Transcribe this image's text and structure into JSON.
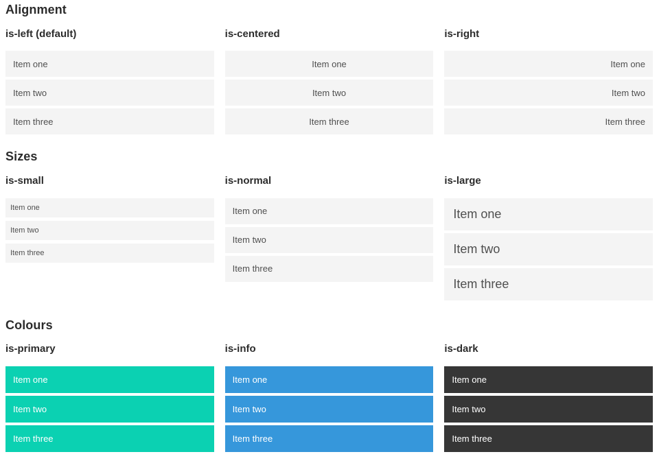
{
  "colors": {
    "page_bg": "#ffffff",
    "heading_text": "#2c2c2c",
    "item_bg": "#f4f4f4",
    "item_text": "#4f4f4f",
    "primary": "#0bd1b2",
    "info": "#3697db",
    "dark": "#363636",
    "on_color_text": "#ffffff"
  },
  "sections": [
    {
      "title": "Alignment",
      "groups": [
        {
          "label": "is-left (default)",
          "variant": "left",
          "items": [
            "Item one",
            "Item two",
            "Item three"
          ]
        },
        {
          "label": "is-centered",
          "variant": "centered",
          "items": [
            "Item one",
            "Item two",
            "Item three"
          ]
        },
        {
          "label": "is-right",
          "variant": "right",
          "items": [
            "Item one",
            "Item two",
            "Item three"
          ]
        }
      ]
    },
    {
      "title": "Sizes",
      "groups": [
        {
          "label": "is-small",
          "variant": "small",
          "items": [
            "Item one",
            "Item two",
            "Item three"
          ]
        },
        {
          "label": "is-normal",
          "variant": "normal",
          "items": [
            "Item one",
            "Item two",
            "Item three"
          ]
        },
        {
          "label": "is-large",
          "variant": "large",
          "items": [
            "Item one",
            "Item two",
            "Item three"
          ]
        }
      ]
    },
    {
      "title": "Colours",
      "groups": [
        {
          "label": "is-primary",
          "variant": "primary",
          "items": [
            "Item one",
            "Item two",
            "Item three"
          ]
        },
        {
          "label": "is-info",
          "variant": "info",
          "items": [
            "Item one",
            "Item two",
            "Item three"
          ]
        },
        {
          "label": "is-dark",
          "variant": "dark",
          "items": [
            "Item one",
            "Item two",
            "Item three"
          ]
        }
      ]
    }
  ]
}
